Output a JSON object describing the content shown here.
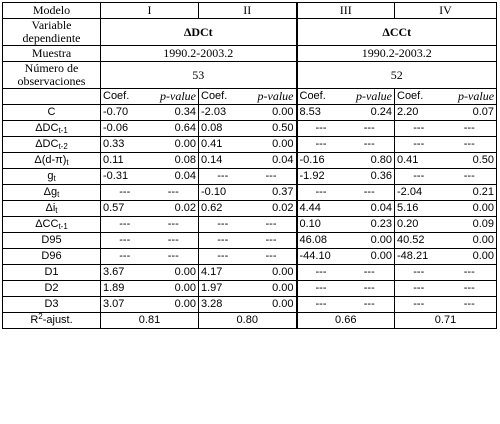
{
  "header": {
    "modelo_label": "Modelo",
    "models": [
      "I",
      "II",
      "III",
      "IV"
    ],
    "var_dep_label": [
      "Variable",
      "dependiente"
    ],
    "dep_dc": "ΔDCt",
    "dep_cc": "ΔCCt",
    "muestra_label": "Muestra",
    "muestra_1": "1990.2-2003.2",
    "muestra_2": "1990.2-2003.2",
    "nobs_label": [
      "Número de",
      "observaciones"
    ],
    "nobs_1": "53",
    "nobs_2": "52",
    "coef_label": "Coef.",
    "pval_label": "p-value"
  },
  "rows": [
    {
      "label": "C",
      "label_main": "C",
      "label_sub": "",
      "v": [
        "-0.70",
        "0.34",
        "-2.03",
        "0.00",
        "8.53",
        "0.24",
        "2.20",
        "0.07"
      ]
    },
    {
      "label": "ΔDCt-1",
      "label_main": "ΔDC",
      "label_sub": "t-1",
      "v": [
        "-0.06",
        "0.64",
        "0.08",
        "0.50",
        "---",
        "---",
        "---",
        "---"
      ]
    },
    {
      "label": "ΔDCt-2",
      "label_main": "ΔDC",
      "label_sub": "t-2",
      "v": [
        "0.33",
        "0.00",
        "0.41",
        "0.00",
        "---",
        "---",
        "---",
        "---"
      ]
    },
    {
      "label": "Δ(d-π)t",
      "label_main": "Δ(d-π)",
      "label_sub": "t",
      "v": [
        "0.11",
        "0.08",
        "0.14",
        "0.04",
        "-0.16",
        "0.80",
        "0.41",
        "0.50"
      ]
    },
    {
      "label": "gt",
      "label_main": "g",
      "label_sub": "t",
      "v": [
        "-0.31",
        "0.04",
        "---",
        "---",
        "-1.92",
        "0.36",
        "---",
        "---"
      ]
    },
    {
      "label": "Δgt",
      "label_main": "Δg",
      "label_sub": "t",
      "v": [
        "---",
        "---",
        "-0.10",
        "0.37",
        "---",
        "---",
        "-2.04",
        "0.21"
      ]
    },
    {
      "label": "Δit",
      "label_main": "Δi",
      "label_sub": "t",
      "v": [
        "0.57",
        "0.02",
        "0.62",
        "0.02",
        "4.44",
        "0.04",
        "5.16",
        "0.00"
      ]
    },
    {
      "label": "ΔCCt-1",
      "label_main": "ΔCC",
      "label_sub": "t-1",
      "v": [
        "---",
        "---",
        "---",
        "---",
        "0.10",
        "0.23",
        "0.20",
        "0.09"
      ]
    },
    {
      "label": "D95",
      "label_main": "D95",
      "label_sub": "",
      "v": [
        "---",
        "---",
        "---",
        "---",
        "46.08",
        "0.00",
        "40.52",
        "0.00"
      ]
    },
    {
      "label": "D96",
      "label_main": "D96",
      "label_sub": "",
      "v": [
        "---",
        "---",
        "---",
        "---",
        "-44.10",
        "0.00",
        "-48.21",
        "0.00"
      ]
    },
    {
      "label": "D1",
      "label_main": "D1",
      "label_sub": "",
      "v": [
        "3.67",
        "0.00",
        "4.17",
        "0.00",
        "---",
        "---",
        "---",
        "---"
      ]
    },
    {
      "label": "D2",
      "label_main": "D2",
      "label_sub": "",
      "v": [
        "1.89",
        "0.00",
        "1.97",
        "0.00",
        "---",
        "---",
        "---",
        "---"
      ]
    },
    {
      "label": "D3",
      "label_main": "D3",
      "label_sub": "",
      "v": [
        "3.07",
        "0.00",
        "3.28",
        "0.00",
        "---",
        "---",
        "---",
        "---"
      ]
    }
  ],
  "footer": {
    "r2_main": "R",
    "r2_sup": "2",
    "r2_rest": "-ajust.",
    "r2_values": [
      "0.81",
      "0.80",
      "0.66",
      "0.71"
    ]
  }
}
